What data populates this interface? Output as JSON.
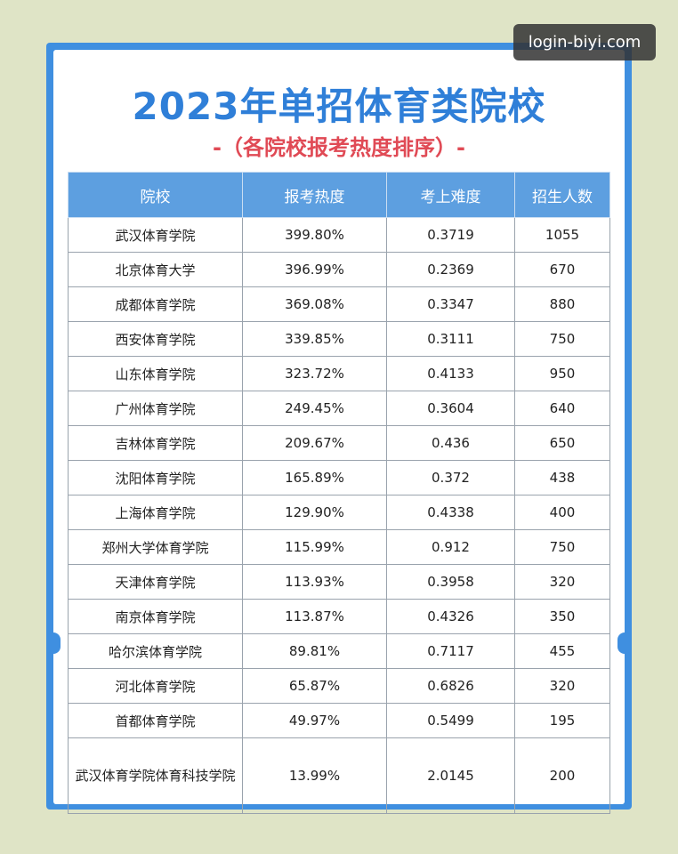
{
  "header": {
    "title": "2023年单招体育类院校",
    "subtitle": "-（各院校报考热度排序）-"
  },
  "watermark": "login-biyi.com",
  "table": {
    "columns": [
      "院校",
      "报考热度",
      "考上难度",
      "招生人数"
    ],
    "rows": [
      [
        "武汉体育学院",
        "399.80%",
        "0.3719",
        "1055"
      ],
      [
        "北京体育大学",
        "396.99%",
        "0.2369",
        "670"
      ],
      [
        "成都体育学院",
        "369.08%",
        "0.3347",
        "880"
      ],
      [
        "西安体育学院",
        "339.85%",
        "0.3111",
        "750"
      ],
      [
        "山东体育学院",
        "323.72%",
        "0.4133",
        "950"
      ],
      [
        "广州体育学院",
        "249.45%",
        "0.3604",
        "640"
      ],
      [
        "吉林体育学院",
        "209.67%",
        "0.436",
        "650"
      ],
      [
        "沈阳体育学院",
        "165.89%",
        "0.372",
        "438"
      ],
      [
        "上海体育学院",
        "129.90%",
        "0.4338",
        "400"
      ],
      [
        "郑州大学体育学院",
        "115.99%",
        "0.912",
        "750"
      ],
      [
        "天津体育学院",
        "113.93%",
        "0.3958",
        "320"
      ],
      [
        "南京体育学院",
        "113.87%",
        "0.4326",
        "350"
      ],
      [
        "哈尔滨体育学院",
        "89.81%",
        "0.7117",
        "455"
      ],
      [
        "河北体育学院",
        "65.87%",
        "0.6826",
        "320"
      ],
      [
        "首都体育学院",
        "49.97%",
        "0.5499",
        "195"
      ],
      [
        "武汉体育学院体育科技学院",
        "13.99%",
        "2.0145",
        "200"
      ]
    ]
  }
}
